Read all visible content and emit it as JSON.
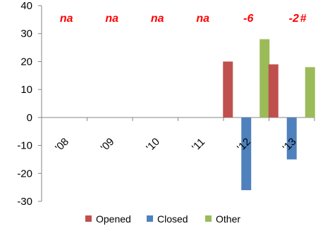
{
  "chart_data": {
    "type": "bar",
    "categories": [
      "'08",
      "'09",
      "'10",
      "'11",
      "'12",
      "'13"
    ],
    "series": [
      {
        "name": "Opened",
        "color": "#c0504d",
        "values": [
          null,
          null,
          null,
          null,
          20,
          19
        ]
      },
      {
        "name": "Closed",
        "color": "#4f81bd",
        "values": [
          null,
          null,
          null,
          null,
          -26,
          -15
        ]
      },
      {
        "name": "Other",
        "color": "#9bbb59",
        "values": [
          null,
          null,
          null,
          null,
          28,
          18
        ]
      }
    ],
    "ylim": [
      -30,
      40
    ],
    "yticks": [
      -30,
      -20,
      -10,
      0,
      10,
      20,
      30,
      40
    ],
    "ytick_labels": [
      "-30",
      "-20",
      "-10",
      "0",
      "10",
      "20",
      "30",
      "40"
    ],
    "annotations": [
      "na",
      "na",
      "na",
      "na",
      "-6",
      "-2"
    ],
    "annotation_extra": "#",
    "annotation_color": "#ff0000",
    "legend_position": "bottom",
    "grid": false
  }
}
